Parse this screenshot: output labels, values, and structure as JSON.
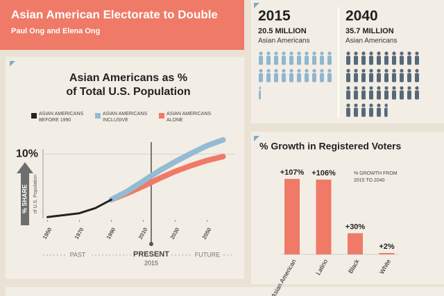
{
  "header": {
    "title": "Asian American Electorate to Double",
    "subtitle": "Paul Ong and Elena Ong"
  },
  "chart_data": [
    {
      "type": "line",
      "title": [
        "Asian Americans as %",
        "of Total U.S. Population"
      ],
      "y_label": "% SHARE",
      "y_sublabel": "of U.S. Population",
      "x": [
        1950,
        1960,
        1970,
        1980,
        1990,
        2000,
        2010,
        2020,
        2030,
        2040,
        2050,
        2060
      ],
      "xlim": [
        1945,
        2065
      ],
      "xticks": [
        1950,
        1970,
        1990,
        2010,
        2030,
        2050
      ],
      "ylim": [
        0,
        12.5
      ],
      "yticks": [
        {
          "value": 10,
          "label": "10%"
        }
      ],
      "series": [
        {
          "name": "ASIAN AMERICANS BEFORE 1990",
          "color": "#222222",
          "values": [
            0.2,
            0.5,
            0.8,
            1.6,
            2.9,
            null,
            null,
            null,
            null,
            null,
            null,
            null
          ]
        },
        {
          "name": "ASIAN AMERICANS INCLUSIVE",
          "color": "#93bcd3",
          "values": [
            null,
            null,
            null,
            null,
            2.9,
            4.2,
            5.8,
            7.4,
            8.8,
            10.1,
            11.3,
            12.2
          ]
        },
        {
          "name": "ASIAN AMERICANS ALONE",
          "color": "#ef7a67",
          "values": [
            null,
            null,
            null,
            null,
            2.9,
            3.9,
            5.0,
            6.2,
            7.3,
            8.2,
            9.0,
            9.6
          ]
        }
      ],
      "annotations": {
        "past": "PAST",
        "present": "PRESENT",
        "present_year": 2015,
        "future": "FUTURE"
      }
    },
    {
      "type": "pictogram",
      "categories": [
        "2015",
        "2040"
      ],
      "values": [
        20.5,
        35.7
      ],
      "value_labels": [
        "20.5 MILLION",
        "35.7 MILLION"
      ],
      "unit_label": "Asian Americans",
      "colors": [
        "#8fb6cf",
        "#56697a"
      ]
    },
    {
      "type": "bar",
      "title": "% Growth in Registered Voters",
      "note": "% GROWTH FROM 2015 TO 2040",
      "categories": [
        "Asian American",
        "Latino",
        "Black",
        "White"
      ],
      "values": [
        107,
        106,
        30,
        2
      ],
      "value_labels": [
        "+107%",
        "+106%",
        "+30%",
        "+2%"
      ],
      "color": "#ef7a67",
      "ylim": [
        0,
        110
      ]
    }
  ]
}
